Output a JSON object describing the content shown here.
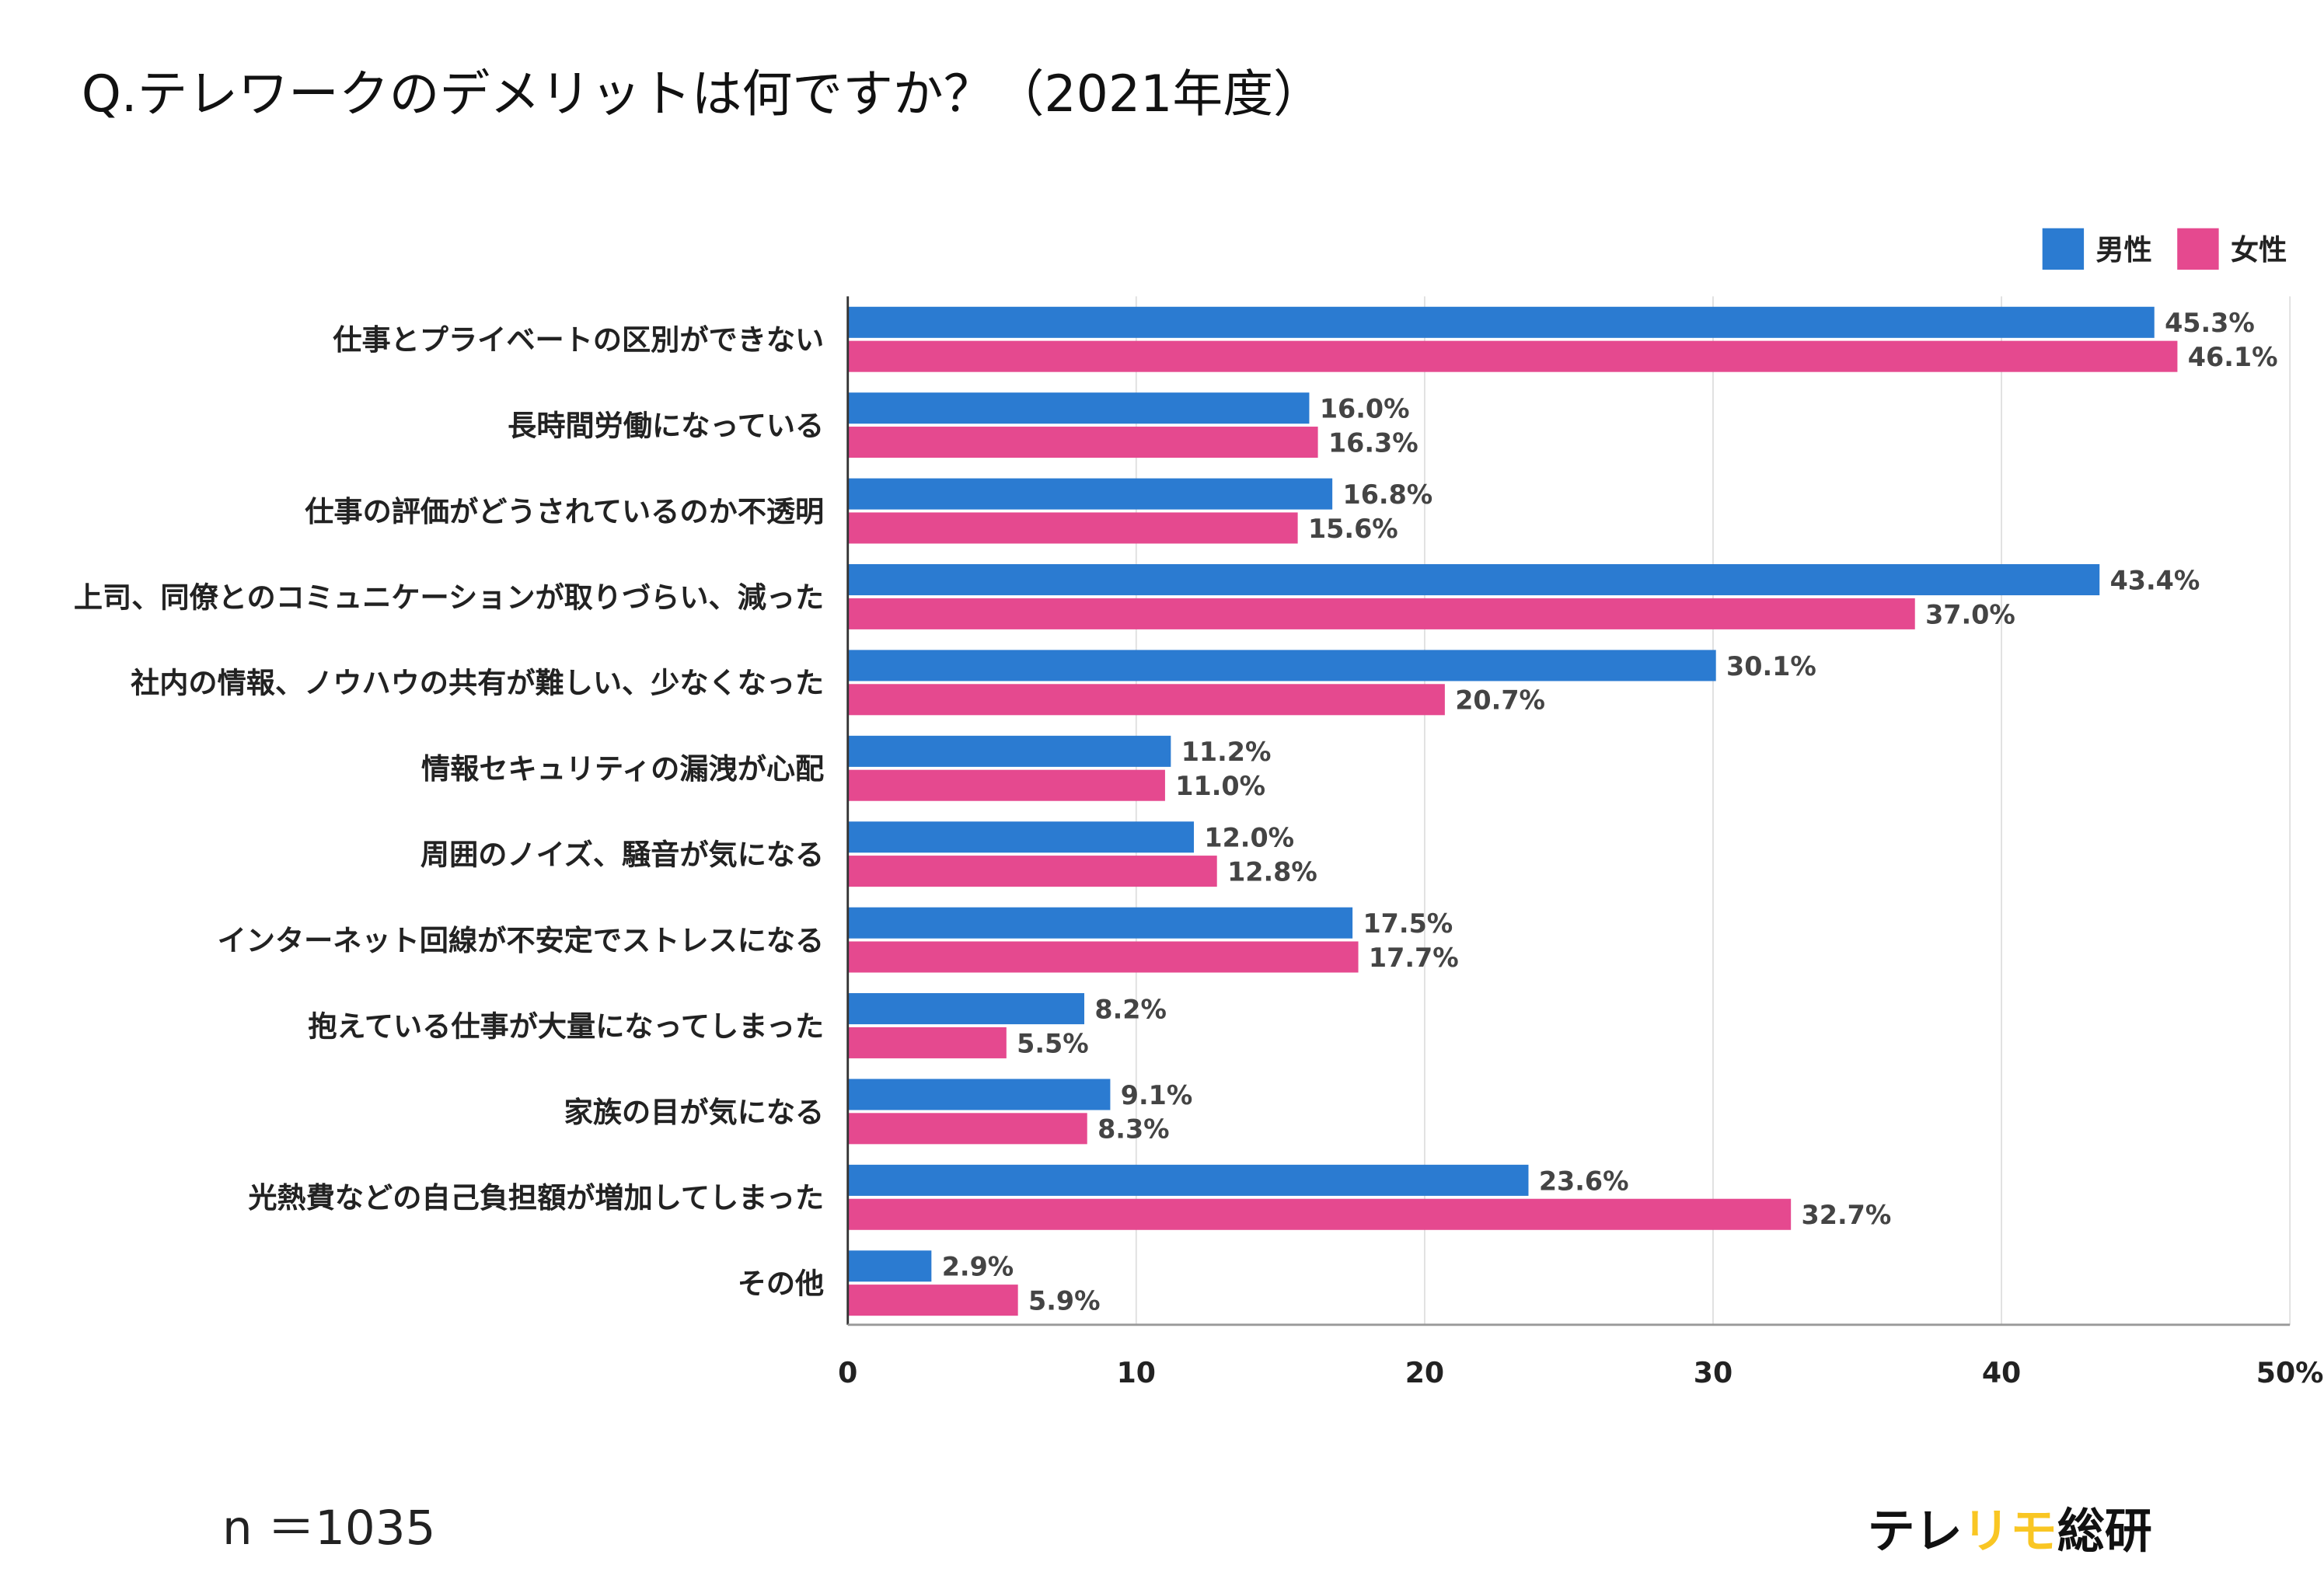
{
  "title": "Q.テレワークのデメリットは何ですか？（2021年度）",
  "footer": {
    "n_label": "n ＝1035",
    "logo_parts": [
      "テレ",
      "リモ",
      "総研"
    ]
  },
  "colors": {
    "male": "#2b7bd1",
    "female": "#e5498f",
    "logo_accent": "#f9c623",
    "grid": "#e0e0e0"
  },
  "chart_data": {
    "type": "bar",
    "orientation": "horizontal",
    "title": "Q.テレワークのデメリットは何ですか？（2021年度）",
    "categories": [
      "仕事とプライベートの区別ができない",
      "長時間労働になっている",
      "仕事の評価がどうされているのか不透明",
      "上司、同僚とのコミュニケーションが取りづらい、減った",
      "社内の情報、ノウハウの共有が難しい、少なくなった",
      "情報セキュリティの漏洩が心配",
      "周囲のノイズ、騒音が気になる",
      "インターネット回線が不安定でストレスになる",
      "抱えている仕事が大量になってしまった",
      "家族の目が気になる",
      "光熱費などの自己負担額が増加してしまった",
      "その他"
    ],
    "series": [
      {
        "name": "男性",
        "values": [
          45.3,
          16.0,
          16.8,
          43.4,
          30.1,
          11.2,
          12.0,
          17.5,
          8.2,
          9.1,
          23.6,
          2.9
        ]
      },
      {
        "name": "女性",
        "values": [
          46.1,
          16.3,
          15.6,
          37.0,
          20.7,
          11.0,
          12.8,
          17.7,
          5.5,
          8.3,
          32.7,
          5.9
        ]
      }
    ],
    "xlim": [
      0,
      50
    ],
    "xticks": [
      "0",
      "10",
      "20",
      "30",
      "40",
      "50%"
    ],
    "legend": "top-right",
    "grid": true,
    "value_suffix": "%"
  }
}
